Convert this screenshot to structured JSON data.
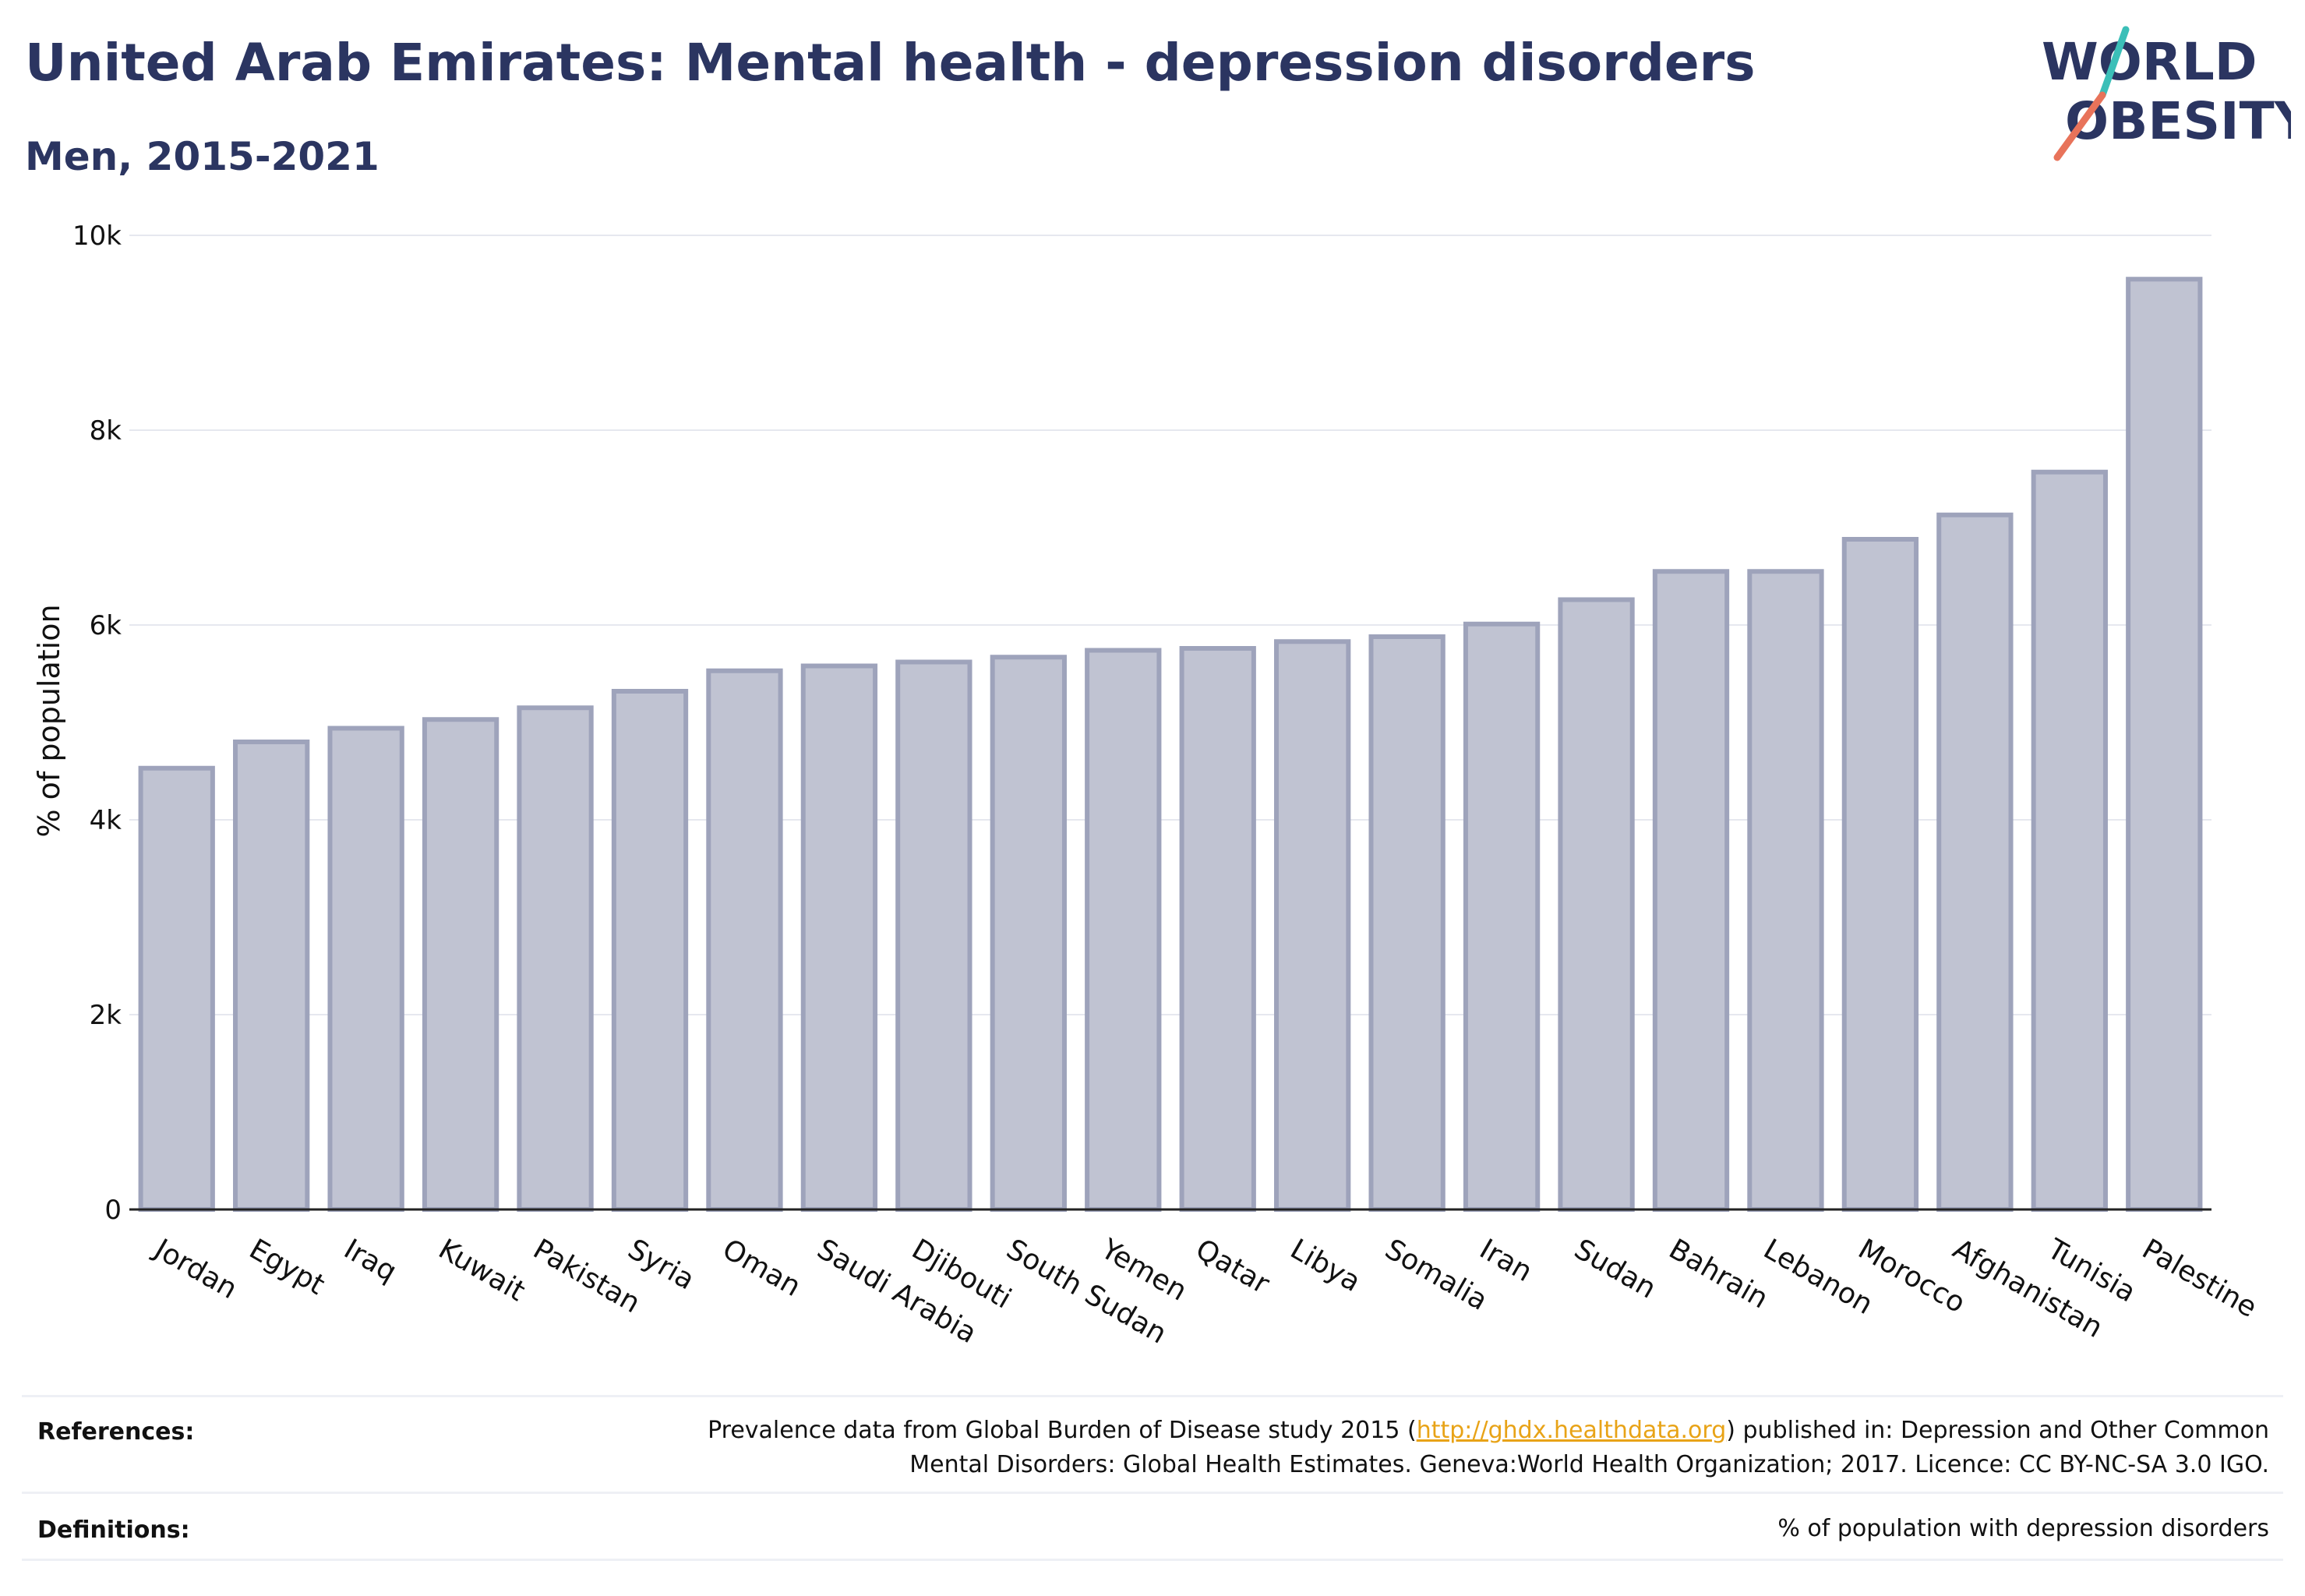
{
  "header": {
    "title": "United Arab Emirates: Mental health - depression disorders",
    "subtitle": "Men, 2015-2021"
  },
  "logo": {
    "line1": "WORLD",
    "line2": "OBESITY",
    "colors": {
      "text": "#2b3561",
      "slash_teal": "#3bbfb8",
      "slash_coral": "#e8735a"
    }
  },
  "chart_data": {
    "type": "bar",
    "categories": [
      "Jordan",
      "Egypt",
      "Iraq",
      "Kuwait",
      "Pakistan",
      "Syria",
      "Oman",
      "Saudi Arabia",
      "Djibouti",
      "South Sudan",
      "Yemen",
      "Qatar",
      "Libya",
      "Somalia",
      "Iran",
      "Sudan",
      "Bahrain",
      "Lebanon",
      "Morocco",
      "Afghanistan",
      "Tunisia",
      "Palestine"
    ],
    "values": [
      4530,
      4800,
      4940,
      5030,
      5150,
      5320,
      5530,
      5580,
      5620,
      5670,
      5740,
      5760,
      5830,
      5880,
      6010,
      6260,
      6550,
      6550,
      6880,
      7130,
      7570,
      9550
    ],
    "ylabel": "% of population",
    "xlabel": "",
    "ylim": [
      0,
      10000
    ],
    "yticks": [
      0,
      2000,
      4000,
      6000,
      8000,
      10000
    ],
    "ytick_labels": [
      "0",
      "2k",
      "4k",
      "6k",
      "8k",
      "10k"
    ],
    "grid": true,
    "colors": {
      "bar_fill": "#c0c3d2",
      "bar_stroke": "#9ea3bb"
    }
  },
  "footer": {
    "references_label": "References:",
    "references_text_1": "Prevalence data from Global Burden of Disease study 2015 (",
    "references_link": "http://ghdx.healthdata.org",
    "references_text_2": ") published in: Depression and Other Common",
    "references_text_3": "Mental Disorders: Global Health Estimates. Geneva:World Health Organization; 2017. Licence: CC BY-NC-SA 3.0 IGO.",
    "definitions_label": "Definitions:",
    "definitions_text": "% of population with depression disorders"
  }
}
